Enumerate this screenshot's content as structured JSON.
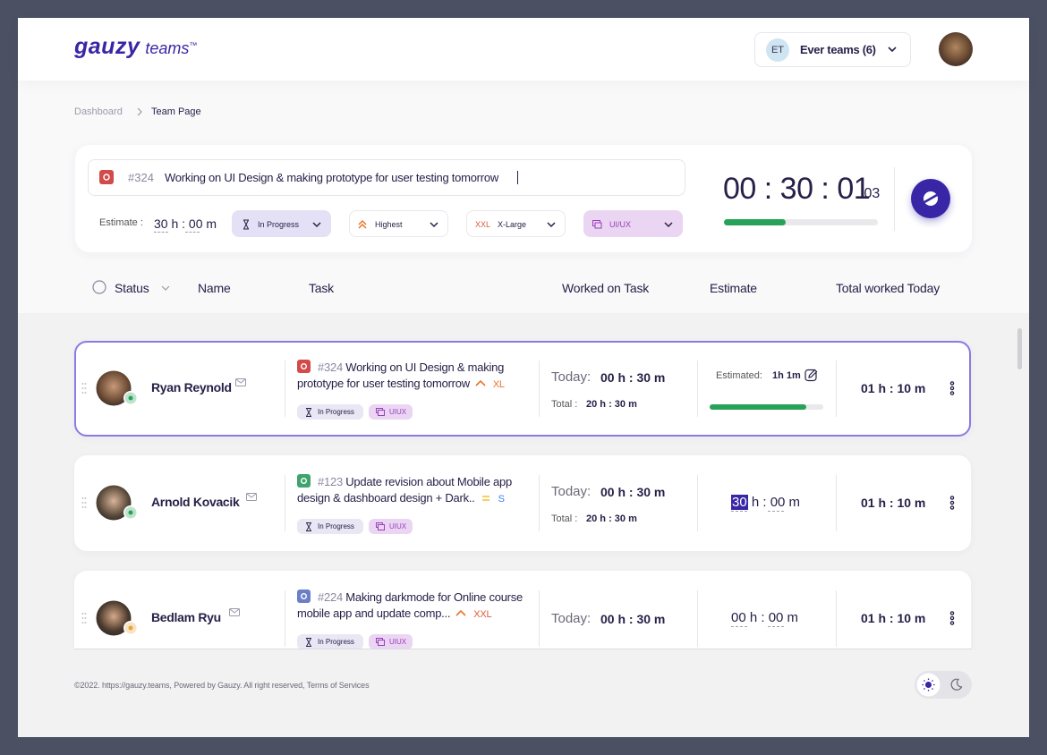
{
  "header": {
    "logo": "gauzy",
    "logo_suffix": "teams",
    "trademark": "™",
    "team": {
      "initials": "ET",
      "name": "Ever teams (6)"
    }
  },
  "breadcrumb": [
    "Dashboard",
    "Team Page"
  ],
  "timer_card": {
    "task_number": "#324",
    "task_title": "Working on UI Design & making prototype for user testing tomorrow",
    "estimate_label": "Estimate :",
    "estimate": "30 h : 00 m",
    "status": "In Progress",
    "priority": "Highest",
    "size_code": "XXL",
    "size": "X-Large",
    "label": "UI/UX",
    "timer": "00 : 30 : 01",
    "timer_fraction": ":03",
    "progress": 40
  },
  "table": {
    "headers": [
      "Status",
      "Name",
      "Task",
      "Worked on Task",
      "Estimate",
      "Total worked Today"
    ],
    "rows": [
      {
        "name": "Ryan Reynold",
        "task_number": "#324",
        "task_title": "Working on UI Design & making prototype for user testing tomorrow",
        "size": "XL",
        "status": "In Progress",
        "label": "UIUX",
        "today_label": "Today:",
        "today": "00 h : 30 m",
        "total_label": "Total :",
        "total": "20 h : 30 m",
        "estimate_label": "Estimated:",
        "estimate": "1h 1m",
        "estimate_progress": 85,
        "worked_today": "01 h : 10 m"
      },
      {
        "name": "Arnold Kovacik",
        "task_number": "#123",
        "task_title": "Update revision about Mobile app design & dashboard design + Dark..",
        "size": "S",
        "status": "In Progress",
        "label": "UIUX",
        "today_label": "Today:",
        "today": "00 h : 30 m",
        "total_label": "Total :",
        "total": "20 h : 30 m",
        "estimate": {
          "hours": "30",
          "remainder": "h : 00 m"
        },
        "worked_today": "01 h : 10 m"
      },
      {
        "name": "Bedlam Ryu",
        "task_number": "#224",
        "task_title": "Making darkmode for Online course mobile app and update comp...",
        "size": "XXL",
        "status": "In Progress",
        "label": "UIUX",
        "today_label": "Today:",
        "today": "00 h : 30 m",
        "estimate": "00 h : 00 m",
        "worked_today": "01 h : 10 m"
      }
    ]
  },
  "footer": "©2022. https://gauzy.teams, Powered by Gauzy. All right reserved, Terms of Services"
}
